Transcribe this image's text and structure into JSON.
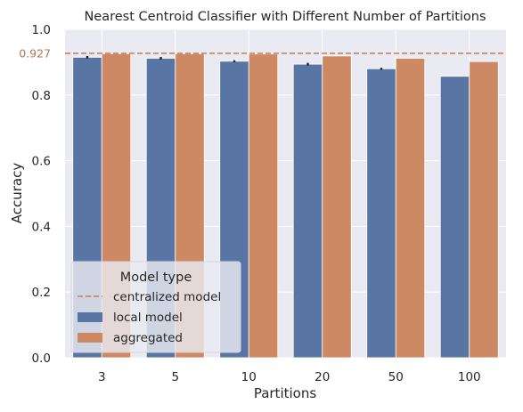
{
  "chart_data": {
    "type": "bar",
    "title": "Nearest Centroid Classifier with Different Number of Partitions",
    "xlabel": "Partitions",
    "ylabel": "Accuracy",
    "ylim": [
      0,
      1.0
    ],
    "yticks": [
      0.0,
      0.2,
      0.4,
      0.6,
      0.8,
      1.0
    ],
    "ytick_labels": [
      "0.0",
      "0.2",
      "0.4",
      "0.6",
      "0.8",
      "1.0"
    ],
    "categories": [
      "3",
      "5",
      "10",
      "20",
      "50",
      "100"
    ],
    "series": [
      {
        "name": "local model",
        "values": [
          0.915,
          0.912,
          0.903,
          0.894,
          0.88,
          0.857
        ],
        "error": [
          0.004,
          0.004,
          0.003,
          0.004,
          0.003,
          0.0
        ]
      },
      {
        "name": "aggregated",
        "values": [
          0.926,
          0.926,
          0.925,
          0.919,
          0.912,
          0.902
        ]
      }
    ],
    "reference_line": {
      "name": "centralized model",
      "value": 0.927,
      "label": "0.927"
    },
    "legend": {
      "title": "Model type",
      "placement": "lower-left"
    },
    "grid": true,
    "colors": {
      "local model": "#5875a4",
      "aggregated": "#cc8963",
      "centralized model": "#c4845d",
      "background": "#eaeaf2",
      "grid": "#ffffff",
      "error_bar": "#222222",
      "ref_label": "#b57554"
    }
  }
}
